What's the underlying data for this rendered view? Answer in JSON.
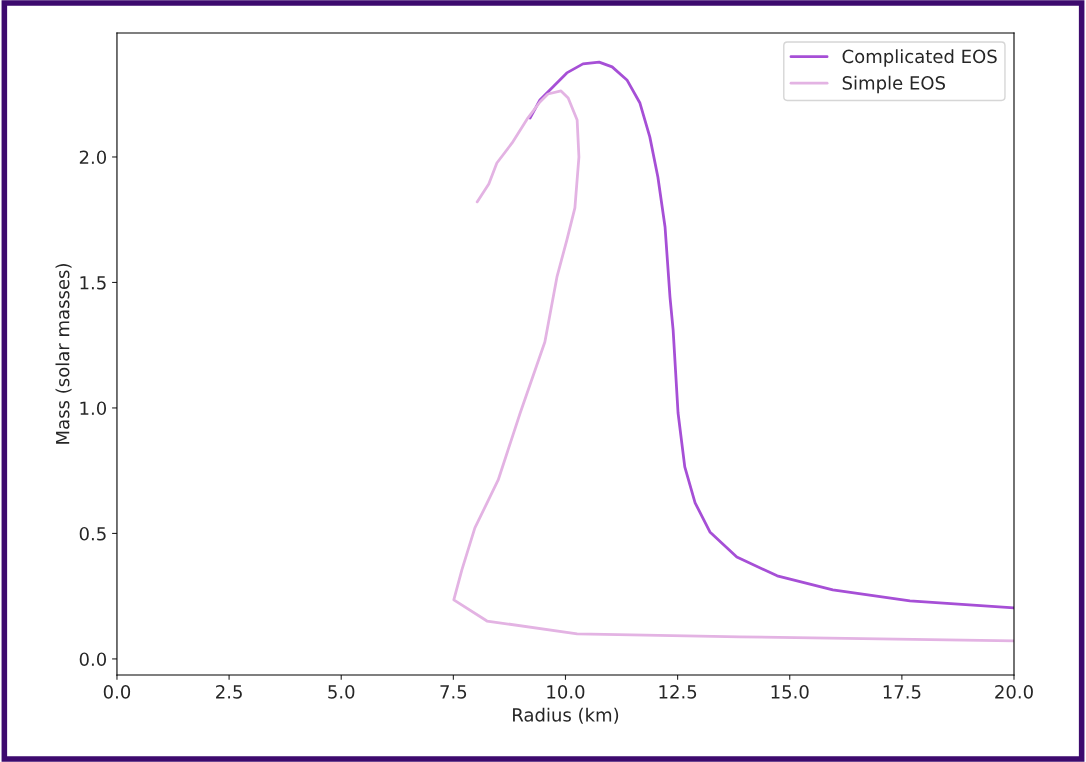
{
  "chart_data": {
    "type": "line",
    "xlabel": "Radius (km)",
    "ylabel": "Mass (solar masses)",
    "xlim": [
      0,
      20
    ],
    "ylim": [
      -0.064,
      2.494
    ],
    "xticks": [
      {
        "value": 0,
        "label": "0.0"
      },
      2.5,
      {
        "value": 5,
        "label": "5.0"
      },
      7.5,
      {
        "value": 10,
        "label": "10.0"
      },
      12.5,
      {
        "value": 15,
        "label": "15.0"
      },
      17.5,
      {
        "value": 20,
        "label": "20.0"
      }
    ],
    "yticks": [
      {
        "value": 0,
        "label": "0.0"
      },
      0.5,
      {
        "value": 1,
        "label": "1.0"
      },
      1.5,
      {
        "value": 2,
        "label": "2.0"
      }
    ],
    "grid": false,
    "legend": "top right",
    "marker": "none",
    "line_style": "solid",
    "series": [
      {
        "name": "Complicated EOS",
        "color": "#a64fd6",
        "x": [
          9.21,
          9.43,
          10.03,
          10.39,
          10.75,
          11.04,
          11.37,
          11.66,
          11.88,
          12.06,
          12.22,
          12.33,
          12.4,
          12.51,
          12.66,
          12.89,
          13.22,
          13.82,
          14.72,
          15.96,
          17.68,
          20.0
        ],
        "values": [
          2.155,
          2.227,
          2.335,
          2.371,
          2.378,
          2.359,
          2.307,
          2.215,
          2.08,
          1.92,
          1.721,
          1.442,
          1.311,
          0.98,
          0.765,
          0.622,
          0.506,
          0.406,
          0.331,
          0.275,
          0.231,
          0.203
        ]
      },
      {
        "name": "Simple EOS",
        "color": "#e3b3e3",
        "x": [
          8.03,
          8.29,
          8.47,
          8.81,
          9.16,
          9.43,
          9.61,
          9.9,
          10.06,
          10.26,
          10.3,
          10.21,
          10.03,
          9.81,
          9.54,
          8.99,
          8.5,
          7.98,
          7.69,
          7.51,
          8.25,
          10.26,
          13.89,
          20.0
        ],
        "values": [
          1.821,
          1.892,
          1.976,
          2.056,
          2.155,
          2.219,
          2.251,
          2.263,
          2.235,
          2.147,
          2.0,
          1.797,
          1.669,
          1.522,
          1.263,
          0.98,
          0.713,
          0.522,
          0.355,
          0.235,
          0.151,
          0.1,
          0.088,
          0.072
        ]
      }
    ]
  }
}
